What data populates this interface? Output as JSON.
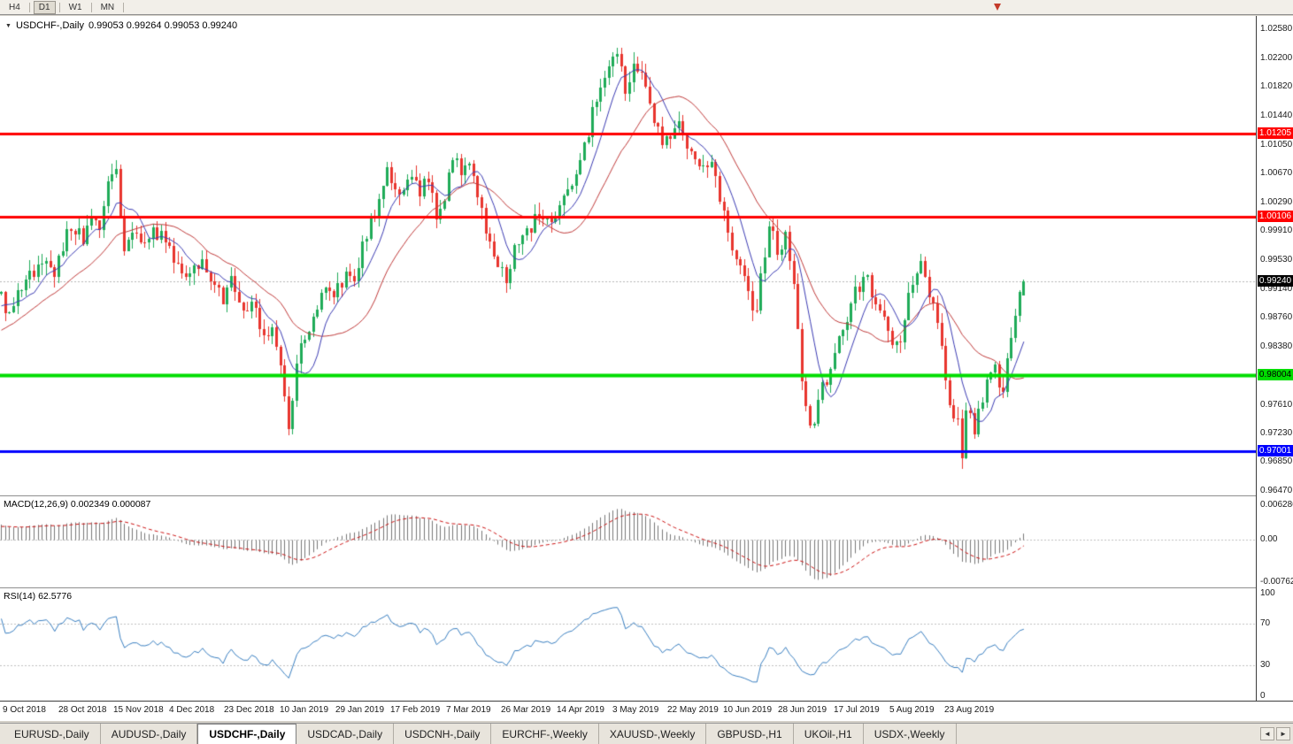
{
  "toolbar": {
    "timeframes": [
      {
        "label": "H4",
        "active": false
      },
      {
        "label": "D1",
        "active": true
      },
      {
        "label": "W1",
        "active": false
      },
      {
        "label": "MN",
        "active": false
      }
    ]
  },
  "icons": {
    "dropdown": "▼",
    "tab_scroll_left": "◄",
    "tab_scroll_right": "►"
  },
  "chart_data": {
    "type": "candlestick",
    "title": {
      "symbol": "USDCHF-,Daily",
      "values": "0.99053 0.99264 0.99053 0.99240"
    },
    "ohlc": {
      "open": 0.99053,
      "high": 0.99264,
      "low": 0.99053,
      "close": 0.9924
    },
    "colors": {
      "bull": "#1fab58",
      "bear": "#e8352e",
      "ma_fast": "#3b3bb3",
      "ma_slow": "#c03a3a",
      "rsi_line": "#3a7fc1",
      "macd_hist": "#777777",
      "macd_signal": "#cc1111",
      "grid_dotted": "#b8b8b8"
    },
    "price_axis": {
      "min": 0.9641,
      "max": 1.0276,
      "labels": [
        "1.02580",
        "1.02200",
        "1.01820",
        "1.01440",
        "1.01050",
        "1.00670",
        "1.00290",
        "0.99910",
        "0.99530",
        "0.99140",
        "0.98760",
        "0.98380",
        "0.97610",
        "0.97230",
        "0.96850",
        "0.96470"
      ]
    },
    "levels": [
      {
        "price": 1.01205,
        "label": "1.01205",
        "color": "#ff0000",
        "text_color": "#ffffff",
        "line_width": 3
      },
      {
        "price": 1.00106,
        "label": "1.00106",
        "color": "#ff0000",
        "text_color": "#ffffff",
        "line_width": 3
      },
      {
        "price": 0.98004,
        "label": "0.98004",
        "color": "#00dd00",
        "text_color": "#000000",
        "line_width": 4
      },
      {
        "price": 0.97001,
        "label": "0.97001",
        "color": "#0000ff",
        "text_color": "#ffffff",
        "line_width": 3
      }
    ],
    "current_price": {
      "value": 0.9924,
      "label": "0.99240",
      "bg": "#000000",
      "text_color": "#ffffff"
    },
    "price_path": [
      [
        -140,
        0.9762
      ],
      [
        -80,
        0.983
      ],
      [
        -30,
        0.9882
      ],
      [
        0,
        0.9905
      ],
      [
        10,
        0.9872
      ],
      [
        22,
        0.9918
      ],
      [
        45,
        0.9952
      ],
      [
        60,
        0.9938
      ],
      [
        78,
        1.0002
      ],
      [
        92,
        0.998
      ],
      [
        103,
        1.0012
      ],
      [
        112,
        0.9992
      ],
      [
        122,
        1.0058
      ],
      [
        130,
        1.008
      ],
      [
        138,
        0.9962
      ],
      [
        150,
        0.9995
      ],
      [
        160,
        0.9965
      ],
      [
        172,
        0.9988
      ],
      [
        185,
        0.9985
      ],
      [
        198,
        0.9945
      ],
      [
        210,
        0.993
      ],
      [
        228,
        0.9958
      ],
      [
        242,
        0.9912
      ],
      [
        252,
        0.99
      ],
      [
        262,
        0.9932
      ],
      [
        272,
        0.9882
      ],
      [
        285,
        0.9902
      ],
      [
        295,
        0.9852
      ],
      [
        308,
        0.9868
      ],
      [
        318,
        0.9792
      ],
      [
        325,
        0.9732
      ],
      [
        335,
        0.9828
      ],
      [
        350,
        0.9868
      ],
      [
        365,
        0.9918
      ],
      [
        375,
        0.9898
      ],
      [
        390,
        0.9938
      ],
      [
        400,
        0.9922
      ],
      [
        412,
        0.9988
      ],
      [
        425,
        1.0018
      ],
      [
        435,
        1.0078
      ],
      [
        448,
        1.0035
      ],
      [
        460,
        1.0068
      ],
      [
        472,
        1.0042
      ],
      [
        482,
        1.0065
      ],
      [
        492,
        1.0002
      ],
      [
        502,
        1.004
      ],
      [
        512,
        1.0098
      ],
      [
        522,
        1.0068
      ],
      [
        532,
        1.0082
      ],
      [
        545,
        1.0002
      ],
      [
        558,
        0.9962
      ],
      [
        570,
        0.9922
      ],
      [
        582,
        0.9978
      ],
      [
        595,
        0.999
      ],
      [
        608,
        1.0012
      ],
      [
        620,
        1.0002
      ],
      [
        635,
        1.0028
      ],
      [
        648,
        1.0058
      ],
      [
        662,
        1.0118
      ],
      [
        675,
        1.0178
      ],
      [
        688,
        1.0212
      ],
      [
        695,
        1.0235
      ],
      [
        705,
        1.0182
      ],
      [
        715,
        1.0208
      ],
      [
        725,
        1.0192
      ],
      [
        738,
        1.0138
      ],
      [
        748,
        1.0105
      ],
      [
        758,
        1.0122
      ],
      [
        768,
        1.0138
      ],
      [
        778,
        1.0095
      ],
      [
        790,
        1.0072
      ],
      [
        800,
        1.0088
      ],
      [
        812,
        1.0035
      ],
      [
        822,
        0.9988
      ],
      [
        835,
        0.9938
      ],
      [
        845,
        0.9908
      ],
      [
        852,
        0.9878
      ],
      [
        868,
        1.0
      ],
      [
        878,
        0.9958
      ],
      [
        888,
        0.9988
      ],
      [
        898,
        0.9888
      ],
      [
        908,
        0.9762
      ],
      [
        916,
        0.9722
      ],
      [
        925,
        0.9778
      ],
      [
        935,
        0.9802
      ],
      [
        945,
        0.9838
      ],
      [
        955,
        0.9872
      ],
      [
        965,
        0.9915
      ],
      [
        978,
        0.9928
      ],
      [
        988,
        0.9888
      ],
      [
        998,
        0.9868
      ],
      [
        1008,
        0.9828
      ],
      [
        1016,
        0.9852
      ],
      [
        1025,
        0.9898
      ],
      [
        1038,
        0.9948
      ],
      [
        1050,
        0.9898
      ],
      [
        1060,
        0.9868
      ],
      [
        1068,
        0.9792
      ],
      [
        1076,
        0.9732
      ],
      [
        1082,
        0.9745
      ],
      [
        1085,
        0.9675
      ],
      [
        1088,
        0.9748
      ],
      [
        1092,
        0.9758
      ],
      [
        1100,
        0.9728
      ],
      [
        1108,
        0.9768
      ],
      [
        1116,
        0.9798
      ],
      [
        1124,
        0.9818
      ],
      [
        1130,
        0.9772
      ],
      [
        1138,
        0.9832
      ],
      [
        1146,
        0.9882
      ],
      [
        1154,
        0.9915
      ],
      [
        1160,
        0.9924
      ]
    ],
    "dates": [
      "9 Oct 2018",
      "28 Oct 2018",
      "15 Nov 2018",
      "4 Dec 2018",
      "23 Dec 2018",
      "10 Jan 2019",
      "29 Jan 2019",
      "17 Feb 2019",
      "7 Mar 2019",
      "26 Mar 2019",
      "14 Apr 2019",
      "3 May 2019",
      "22 May 2019",
      "10 Jun 2019",
      "28 Jun 2019",
      "17 Jul 2019",
      "5 Aug 2019",
      "23 Aug 2019"
    ],
    "macd": {
      "label": "MACD(12,26,9) 0.002349 0.000087",
      "axis_labels": [
        "0.006286",
        "0.00",
        "-0.00762"
      ],
      "range": [
        -0.0085,
        0.0078
      ],
      "params": [
        12,
        26,
        9
      ]
    },
    "rsi": {
      "label": "RSI(14) 62.5776",
      "value": 62.5776,
      "axis_labels": [
        "100",
        "70",
        "30",
        "0"
      ],
      "levels": [
        70,
        30
      ],
      "period": 14
    }
  },
  "tabs": {
    "items": [
      {
        "label": "EURUSD-,Daily",
        "active": false
      },
      {
        "label": "AUDUSD-,Daily",
        "active": false
      },
      {
        "label": "USDCHF-,Daily",
        "active": true
      },
      {
        "label": "USDCAD-,Daily",
        "active": false
      },
      {
        "label": "USDCNH-,Daily",
        "active": false
      },
      {
        "label": "EURCHF-,Weekly",
        "active": false
      },
      {
        "label": "XAUUSD-,Weekly",
        "active": false
      },
      {
        "label": "GBPUSD-,H1",
        "active": false
      },
      {
        "label": "UKOil-,H1",
        "active": false
      },
      {
        "label": "USDX-,Weekly",
        "active": false
      }
    ]
  }
}
